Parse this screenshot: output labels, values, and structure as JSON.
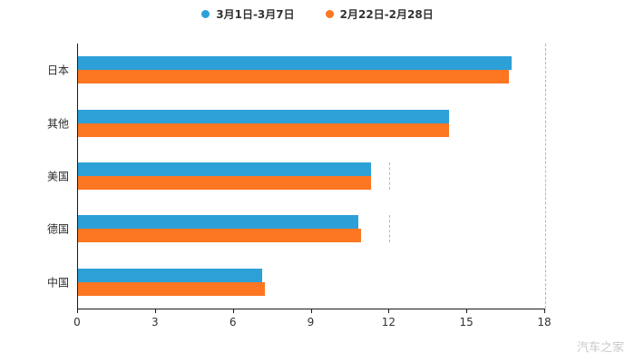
{
  "watermark": "汽车之家",
  "chart_data": {
    "type": "bar",
    "orientation": "horizontal",
    "title": "",
    "categories": [
      "日本",
      "其他",
      "美国",
      "德国",
      "中国"
    ],
    "series": [
      {
        "name": "3月1日-3月7日",
        "color": "#2DA0D8",
        "values": [
          16.7,
          14.3,
          11.3,
          10.8,
          7.1
        ]
      },
      {
        "name": "2月22日-2月28日",
        "color": "#FD7622",
        "values": [
          16.6,
          14.3,
          11.3,
          10.9,
          7.2
        ]
      }
    ],
    "xlim": [
      0,
      18
    ],
    "xticks": [
      0,
      3,
      6,
      9,
      12,
      15,
      18
    ],
    "xlabel": "",
    "ylabel": "",
    "grid": "off",
    "dashed_guides": {
      "full_line_x": 18,
      "fragments": [
        {
          "x": 12,
          "row": 2
        },
        {
          "x": 12,
          "row": 3
        }
      ]
    },
    "legend_position": "top-center"
  }
}
